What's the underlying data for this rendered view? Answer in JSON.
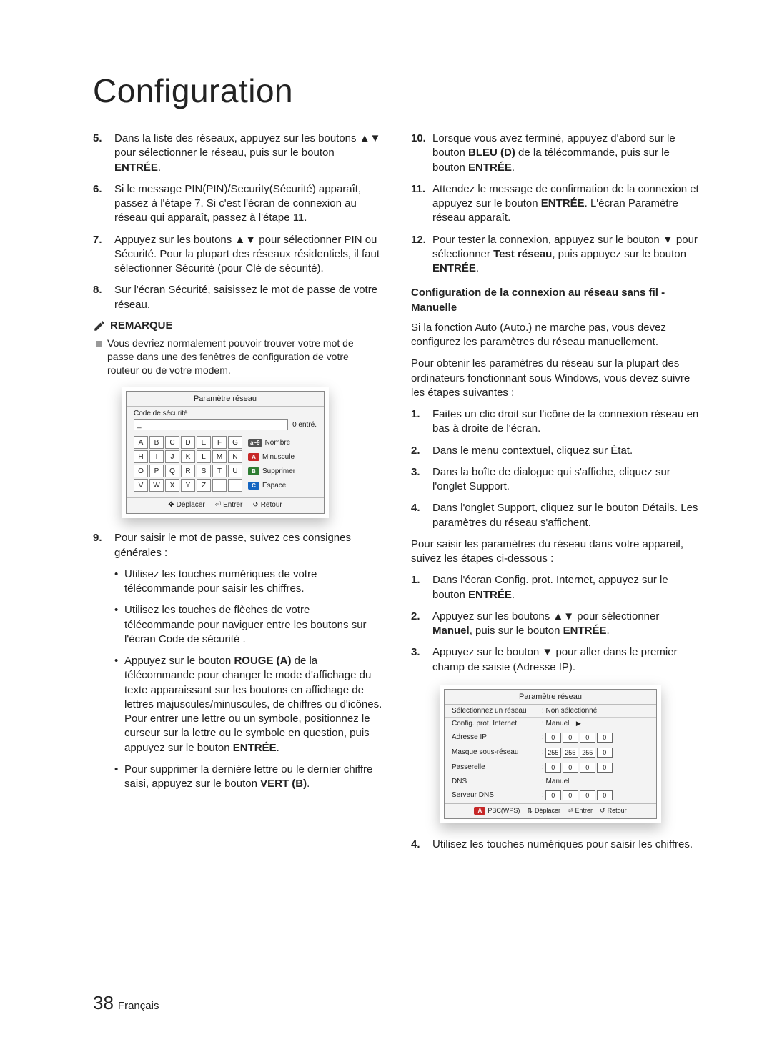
{
  "title": "Configuration",
  "page_number": "38",
  "page_lang": "Français",
  "left": {
    "items": {
      "5": "Dans la liste des réseaux, appuyez sur les boutons ▲▼ pour sélectionner le réseau, puis sur le bouton <b>ENTRÉE</b>.",
      "6": "Si le message PIN(PIN)/Security(Sécurité) apparaît, passez à l'étape 7. Si c'est l'écran de connexion au réseau qui apparaît, passez à l'étape 11.",
      "7": "Appuyez sur les boutons ▲▼ pour sélectionner PIN ou Sécurité. Pour la plupart des réseaux résidentiels, il faut sélectionner Sécurité (pour Clé de sécurité).",
      "8": "Sur l'écran Sécurité, saisissez le mot de passe de votre réseau.",
      "9": "Pour saisir le mot de passe, suivez ces consignes générales :"
    },
    "remark_label": "REMARQUE",
    "remark_text": "Vous devriez normalement pouvoir trouver votre mot de passe dans une des fenêtres de configuration de votre routeur ou de votre modem.",
    "sub": {
      "a": "Utilisez les touches numériques de votre télécommande pour saisir les chiffres.",
      "b": "Utilisez les touches de flèches de votre télécommande pour naviguer entre les boutons sur l'écran Code de sécurité .",
      "c": "Appuyez sur le bouton <b>ROUGE (A)</b> de la télécommande pour changer le mode d'affichage du texte apparaissant sur les boutons en affichage de lettres majuscules/minuscules, de chiffres ou d'icônes. Pour entrer une lettre ou un symbole, positionnez le curseur sur la lettre ou le symbole en question, puis appuyez sur le bouton <b>ENTRÉE</b>.",
      "d": "Pour supprimer la dernière lettre ou le dernier chiffre saisi, appuyez sur le bouton <b>VERT (B)</b>."
    }
  },
  "right": {
    "items": {
      "10": "Lorsque vous avez terminé, appuyez d'abord sur le bouton <b>BLEU (D)</b> de la télécommande, puis sur le bouton <b>ENTRÉE</b>.",
      "11": "Attendez le message de confirmation de la connexion et appuyez sur le bouton <b>ENTRÉE</b>. L'écran Paramètre réseau apparaît.",
      "12": "Pour tester la connexion, appuyez sur le bouton ▼ pour sélectionner <b>Test réseau</b>, puis appuyez sur le bouton <b>ENTRÉE</b>."
    },
    "subhead": "Configuration de la connexion au réseau sans fil - Manuelle",
    "para1": "Si la fonction Auto (Auto.) ne marche pas, vous devez configurez les paramètres du réseau manuellement.",
    "para2": "Pour obtenir les paramètres du réseau sur la plupart des ordinateurs fonctionnant sous Windows, vous devez suivre les étapes suivantes :",
    "steps_a": {
      "1": "Faites un clic droit sur l'icône de la connexion réseau en bas à droite de l'écran.",
      "2": "Dans le menu contextuel, cliquez sur État.",
      "3": "Dans la boîte de dialogue qui s'affiche, cliquez sur l'onglet Support.",
      "4": "Dans l'onglet Support, cliquez sur le bouton Détails. Les paramètres du réseau s'affichent."
    },
    "para3": "Pour saisir les paramètres du réseau dans votre appareil, suivez les étapes ci-dessous :",
    "steps_b": {
      "1": "Dans l'écran Config. prot. Internet, appuyez sur le bouton <b>ENTRÉE</b>.",
      "2": "Appuyez sur les boutons ▲▼ pour sélectionner <b>Manuel</b>, puis sur le bouton <b>ENTRÉE</b>.",
      "3": "Appuyez sur le bouton ▼ pour aller dans le premier champ de saisie (Adresse IP).",
      "4": "Utilisez les touches numériques pour saisir les chiffres."
    }
  },
  "kbd": {
    "title": "Paramètre réseau",
    "section": "Code de sécurité",
    "cursor": "_",
    "entered": "0 entré.",
    "keys": [
      "A",
      "B",
      "C",
      "D",
      "E",
      "F",
      "G",
      "H",
      "I",
      "J",
      "K",
      "L",
      "M",
      "N",
      "O",
      "P",
      "Q",
      "R",
      "S",
      "T",
      "U",
      "V",
      "W",
      "X",
      "Y",
      "Z",
      "",
      ""
    ],
    "side": [
      {
        "tag": "a~9",
        "cls": "tag-grey",
        "label": "Nombre"
      },
      {
        "tag": "A",
        "cls": "tag-red",
        "label": "Minuscule"
      },
      {
        "tag": "B",
        "cls": "tag-green",
        "label": "Supprimer"
      },
      {
        "tag": "C",
        "cls": "tag-blue",
        "label": "Espace"
      }
    ],
    "footer": {
      "move": "Déplacer",
      "enter": "Entrer",
      "return": "Retour"
    }
  },
  "net": {
    "title": "Paramètre réseau",
    "rows": {
      "select_label": "Sélectionnez un réseau",
      "select_val": ": Non sélectionné",
      "config_label": "Config. prot. Internet",
      "config_val": ": Manuel",
      "ip_label": "Adresse IP",
      "ip_vals": [
        "0",
        "0",
        "0",
        "0"
      ],
      "mask_label": "Masque sous-réseau",
      "mask_vals": [
        "255",
        "255",
        "255",
        "0"
      ],
      "gw_label": "Passerelle",
      "gw_vals": [
        "0",
        "0",
        "0",
        "0"
      ],
      "dns_label": "DNS",
      "dns_val": ": Manuel",
      "dnssrv_label": "Serveur DNS",
      "dnssrv_vals": [
        "0",
        "0",
        "0",
        "0"
      ]
    },
    "footer": {
      "pbc": "PBC(WPS)",
      "move": "Déplacer",
      "enter": "Entrer",
      "return": "Retour"
    }
  }
}
